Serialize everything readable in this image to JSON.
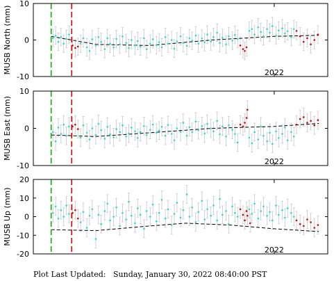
{
  "chart_data": [
    {
      "type": "scatter",
      "ylabel": "MUSB North (mm)",
      "ylim": [
        -10,
        10
      ],
      "yticks": [
        -10,
        0,
        10
      ],
      "xlim": [
        2019.3,
        2022.6
      ],
      "xtick_labels": [
        {
          "value": 2022.0,
          "label": "2022"
        }
      ],
      "vlines": [
        {
          "x": 2019.5,
          "color": "#00bb00"
        },
        {
          "x": 2019.73,
          "color": "#dd0000"
        }
      ],
      "trend": [
        [
          2019.5,
          1.0
        ],
        [
          2020.0,
          -1.2
        ],
        [
          2020.6,
          -1.5
        ],
        [
          2021.3,
          0.0
        ],
        [
          2022.0,
          1.0
        ],
        [
          2022.5,
          1.3
        ]
      ],
      "series": [
        {
          "color": "#22dddd",
          "x": [
            2019.52,
            2019.55,
            2019.58,
            2019.61,
            2019.64,
            2019.67,
            2019.7,
            2019.83,
            2019.86,
            2019.9,
            2019.93,
            2019.96,
            2020.0,
            2020.03,
            2020.06,
            2020.1,
            2020.13,
            2020.16,
            2020.2,
            2020.23,
            2020.27,
            2020.3,
            2020.34,
            2020.37,
            2020.4,
            2020.44,
            2020.47,
            2020.5,
            2020.54,
            2020.57,
            2020.61,
            2020.64,
            2020.68,
            2020.71,
            2020.74,
            2020.78,
            2020.81,
            2020.85,
            2020.88,
            2020.91,
            2020.95,
            2020.98,
            2021.02,
            2021.05,
            2021.08,
            2021.12,
            2021.15,
            2021.19,
            2021.22,
            2021.25,
            2021.29,
            2021.32,
            2021.36,
            2021.39,
            2021.42,
            2021.46,
            2021.49,
            2021.53,
            2021.56,
            2021.59,
            2021.72,
            2021.75,
            2021.78,
            2021.82,
            2021.85,
            2021.88,
            2021.92,
            2021.95,
            2021.98,
            2022.02,
            2022.05,
            2022.09,
            2022.12,
            2022.15,
            2022.19,
            2022.22
          ],
          "y": [
            0.5,
            1.2,
            -0.5,
            0.8,
            -1.0,
            0.3,
            1.5,
            -1.0,
            0.5,
            -2.0,
            -3.0,
            0.2,
            -1.5,
            0.8,
            -0.5,
            -2.5,
            0.5,
            -1.0,
            -2.0,
            0.3,
            -1.2,
            1.0,
            -0.8,
            -2.2,
            0.0,
            -1.5,
            -0.3,
            -1.8,
            0.5,
            -2.5,
            -1.0,
            0.2,
            -1.4,
            -0.6,
            -2.0,
            0.8,
            -1.0,
            0.0,
            -2.4,
            -0.4,
            1.0,
            -0.8,
            -1.6,
            0.5,
            -0.2,
            1.2,
            -1.0,
            0.4,
            -0.6,
            1.5,
            -0.4,
            0.8,
            2.0,
            -0.8,
            0.6,
            -1.2,
            1.0,
            -0.2,
            1.4,
            0.3,
            2.5,
            3.0,
            1.5,
            3.5,
            2.2,
            1.0,
            3.0,
            2.0,
            3.8,
            1.2,
            2.6,
            3.2,
            1.8,
            2.4,
            0.8,
            3.0
          ]
        },
        {
          "color": "#dd0000",
          "x": [
            2019.74,
            2019.77,
            2019.8,
            2021.62,
            2021.65,
            2021.67,
            2021.69,
            2022.25,
            2022.29,
            2022.33,
            2022.37,
            2022.41,
            2022.45,
            2022.49
          ],
          "y": [
            -1.5,
            -2.2,
            -1.8,
            -1.5,
            -2.5,
            -3.0,
            -2.0,
            2.5,
            1.0,
            -0.5,
            0.5,
            -1.2,
            0.0,
            1.5
          ]
        }
      ]
    },
    {
      "type": "scatter",
      "ylabel": "MUSB East (mm)",
      "ylim": [
        -10,
        10
      ],
      "yticks": [
        -10,
        0,
        10
      ],
      "xlim": [
        2019.3,
        2022.6
      ],
      "xtick_labels": [
        {
          "value": 2022.0,
          "label": "2022"
        }
      ],
      "vlines": [
        {
          "x": 2019.5,
          "color": "#00bb00"
        },
        {
          "x": 2019.73,
          "color": "#dd0000"
        }
      ],
      "trend": [
        [
          2019.5,
          -1.8
        ],
        [
          2020.0,
          -2.2
        ],
        [
          2020.6,
          -1.2
        ],
        [
          2021.3,
          0.0
        ],
        [
          2022.0,
          0.5
        ],
        [
          2022.5,
          1.3
        ]
      ],
      "series": [
        {
          "color": "#22dddd",
          "x": [
            2019.52,
            2019.55,
            2019.58,
            2019.61,
            2019.64,
            2019.67,
            2019.7,
            2019.83,
            2019.86,
            2019.9,
            2019.93,
            2019.96,
            2020.0,
            2020.03,
            2020.06,
            2020.1,
            2020.13,
            2020.16,
            2020.2,
            2020.23,
            2020.27,
            2020.3,
            2020.34,
            2020.37,
            2020.4,
            2020.44,
            2020.47,
            2020.5,
            2020.54,
            2020.57,
            2020.61,
            2020.64,
            2020.68,
            2020.71,
            2020.74,
            2020.78,
            2020.81,
            2020.85,
            2020.88,
            2020.91,
            2020.95,
            2020.98,
            2021.02,
            2021.05,
            2021.08,
            2021.12,
            2021.15,
            2021.19,
            2021.22,
            2021.25,
            2021.29,
            2021.32,
            2021.36,
            2021.39,
            2021.42,
            2021.46,
            2021.49,
            2021.53,
            2021.56,
            2021.59,
            2021.72,
            2021.75,
            2021.78,
            2021.82,
            2021.85,
            2021.88,
            2021.92,
            2021.95,
            2021.98,
            2022.02,
            2022.05,
            2022.09,
            2022.12,
            2022.15,
            2022.19,
            2022.22
          ],
          "y": [
            -1.0,
            -3.5,
            0.2,
            -1.5,
            1.0,
            -2.0,
            0.5,
            -2.5,
            0.8,
            -1.2,
            -3.0,
            0.0,
            -1.8,
            1.2,
            -0.5,
            -2.8,
            0.4,
            -1.6,
            -2.4,
            -0.2,
            -1.0,
            0.8,
            -2.2,
            -1.4,
            0.2,
            -0.8,
            -2.6,
            -1.0,
            0.6,
            -1.8,
            -0.4,
            1.0,
            -1.2,
            -0.6,
            0.4,
            -2.0,
            0.9,
            -1.5,
            -3.2,
            0.0,
            -0.9,
            1.5,
            -2.0,
            0.3,
            -1.0,
            1.8,
            -0.5,
            0.6,
            -1.4,
            1.2,
            0.0,
            -0.8,
            2.0,
            -1.6,
            0.5,
            -2.2,
            0.8,
            -0.4,
            -1.5,
            -3.8,
            -2.5,
            -4.0,
            -1.0,
            -3.0,
            0.5,
            -2.0,
            -3.5,
            -1.2,
            -4.2,
            -0.8,
            -2.6,
            -1.5,
            0.2,
            -3.2,
            -1.0,
            -2.2
          ]
        },
        {
          "color": "#dd0000",
          "x": [
            2019.74,
            2019.77,
            2019.8,
            2021.62,
            2021.65,
            2021.67,
            2021.69,
            2021.7,
            2022.25,
            2022.29,
            2022.33,
            2022.37,
            2022.41,
            2022.45,
            2022.49
          ],
          "y": [
            0.5,
            1.0,
            -0.2,
            1.0,
            0.5,
            1.5,
            2.8,
            5.0,
            1.0,
            2.5,
            3.0,
            1.5,
            2.0,
            0.8,
            2.2
          ]
        }
      ]
    },
    {
      "type": "scatter",
      "ylabel": "MUSB Up (mm)",
      "ylim": [
        -20,
        20
      ],
      "yticks": [
        -20,
        -10,
        0,
        10,
        20
      ],
      "xlim": [
        2019.3,
        2022.6
      ],
      "xtick_labels": [
        {
          "value": 2022.0,
          "label": "2022"
        }
      ],
      "vlines": [
        {
          "x": 2019.5,
          "color": "#00bb00"
        },
        {
          "x": 2019.73,
          "color": "#dd0000"
        }
      ],
      "trend": [
        [
          2019.5,
          -7.0
        ],
        [
          2020.0,
          -7.5
        ],
        [
          2020.6,
          -5.0
        ],
        [
          2021.0,
          -3.5
        ],
        [
          2021.5,
          -4.5
        ],
        [
          2022.0,
          -6.5
        ],
        [
          2022.5,
          -8.0
        ]
      ],
      "series": [
        {
          "color": "#22dddd",
          "x": [
            2019.52,
            2019.55,
            2019.58,
            2019.61,
            2019.64,
            2019.67,
            2019.7,
            2019.83,
            2019.86,
            2019.9,
            2019.93,
            2019.96,
            2020.0,
            2020.03,
            2020.06,
            2020.1,
            2020.13,
            2020.16,
            2020.2,
            2020.23,
            2020.27,
            2020.3,
            2020.34,
            2020.37,
            2020.4,
            2020.44,
            2020.47,
            2020.5,
            2020.54,
            2020.57,
            2020.61,
            2020.64,
            2020.68,
            2020.71,
            2020.74,
            2020.78,
            2020.81,
            2020.85,
            2020.88,
            2020.91,
            2020.95,
            2020.98,
            2021.02,
            2021.05,
            2021.08,
            2021.12,
            2021.15,
            2021.19,
            2021.22,
            2021.25,
            2021.29,
            2021.32,
            2021.36,
            2021.39,
            2021.42,
            2021.46,
            2021.49,
            2021.53,
            2021.56,
            2021.59,
            2021.72,
            2021.75,
            2021.78,
            2021.82,
            2021.85,
            2021.88,
            2021.92,
            2021.95,
            2021.98,
            2022.02,
            2022.05,
            2022.09,
            2022.12,
            2022.15,
            2022.19,
            2022.22
          ],
          "y": [
            2.0,
            5.5,
            -1.0,
            3.5,
            0.0,
            6.0,
            1.5,
            -3.0,
            2.5,
            -6.0,
            0.5,
            4.0,
            -12.0,
            1.0,
            -4.0,
            3.0,
            7.0,
            -2.0,
            0.0,
            5.0,
            -5.0,
            2.0,
            -1.5,
            8.0,
            0.5,
            -3.5,
            4.5,
            1.0,
            -6.5,
            3.0,
            0.0,
            6.5,
            -2.5,
            2.0,
            9.0,
            -1.0,
            4.0,
            -4.5,
            1.5,
            7.5,
            -0.5,
            3.5,
            12.0,
            0.0,
            5.0,
            -3.0,
            2.5,
            8.5,
            -1.5,
            4.0,
            0.5,
            6.0,
            -2.0,
            9.5,
            1.0,
            3.0,
            -4.0,
            5.5,
            2.0,
            0.0,
            4.0,
            1.5,
            7.0,
            -1.0,
            3.0,
            5.5,
            0.5,
            2.5,
            -2.0,
            6.0,
            1.0,
            3.5,
            -0.5,
            4.5,
            2.0,
            0.0
          ]
        },
        {
          "color": "#dd0000",
          "x": [
            2019.74,
            2019.77,
            2019.8,
            2021.62,
            2021.65,
            2021.67,
            2021.69,
            2021.7,
            2021.73,
            2022.25,
            2022.29,
            2022.33,
            2022.37,
            2022.41,
            2022.45,
            2022.49
          ],
          "y": [
            2.0,
            3.5,
            -1.0,
            4.0,
            1.0,
            -2.0,
            3.0,
            0.5,
            -3.5,
            -2.0,
            -4.0,
            -5.0,
            -1.5,
            -3.0,
            -6.0,
            -4.5
          ]
        }
      ]
    }
  ],
  "footer": {
    "label": "Plot Last Updated:",
    "value": "Sunday, January 30, 2022 08:40:00 PST"
  }
}
